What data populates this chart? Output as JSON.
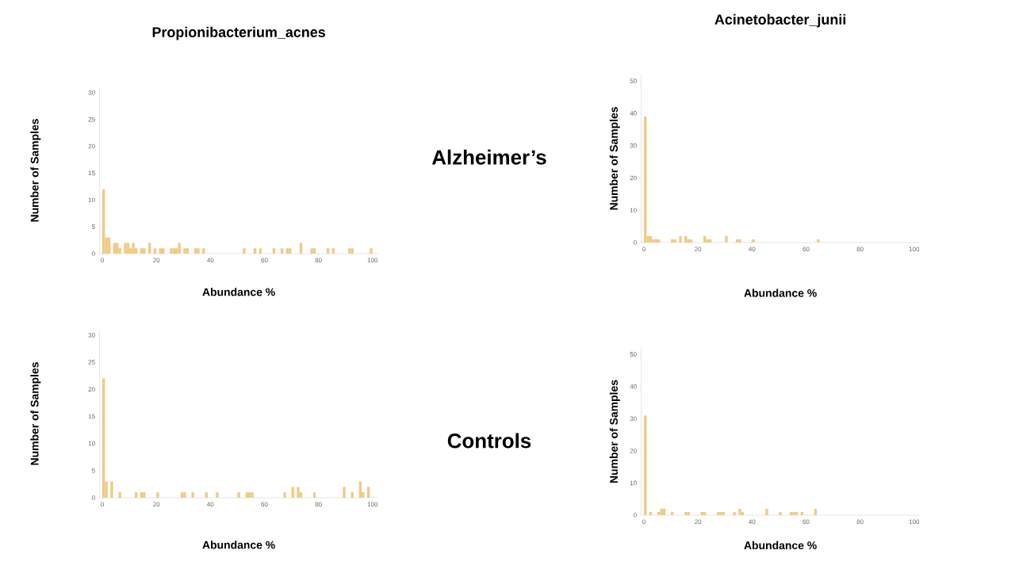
{
  "chart_data": [
    {
      "type": "histogram",
      "title": "Propionibacterium_acnes",
      "xlabel": "Abundance %",
      "ylabel": "Number of Samples",
      "annotations": [
        "Alzheimer’s"
      ],
      "color": "#f0cb84",
      "bins": [
        0,
        1,
        2,
        3,
        4,
        5,
        6,
        7,
        8,
        9,
        10,
        11,
        12,
        13,
        14,
        15,
        16,
        17,
        18,
        19,
        20,
        21,
        22,
        23,
        24,
        25,
        26,
        27,
        28,
        29,
        30,
        31,
        32,
        33,
        34,
        35,
        36,
        37,
        38,
        39,
        40,
        41,
        42,
        43,
        44,
        45,
        46,
        47,
        48,
        49,
        50,
        51,
        52,
        53,
        54,
        55,
        56,
        57,
        58,
        59,
        60,
        61,
        62,
        63,
        64,
        65,
        66,
        67,
        68,
        69,
        70,
        71,
        72,
        73,
        74,
        75,
        76,
        77,
        78,
        79,
        80,
        81,
        82,
        83,
        84,
        85,
        86,
        87,
        88,
        89,
        90,
        91,
        92,
        93,
        94,
        95,
        96,
        97,
        98,
        99,
        100
      ],
      "values": [
        12,
        3,
        3,
        0,
        2,
        2,
        1,
        0,
        2,
        2,
        1,
        2,
        1,
        0,
        1,
        1,
        0,
        2,
        0,
        1,
        0,
        1,
        1,
        0,
        0,
        1,
        1,
        1,
        2,
        0,
        1,
        1,
        0,
        0,
        1,
        1,
        0,
        1,
        0,
        0,
        0,
        0,
        0,
        0,
        0,
        0,
        0,
        0,
        0,
        0,
        0,
        0,
        1,
        0,
        0,
        0,
        1,
        0,
        1,
        0,
        0,
        0,
        0,
        1,
        0,
        0,
        1,
        0,
        1,
        1,
        0,
        0,
        0,
        2,
        0,
        0,
        0,
        1,
        1,
        0,
        0,
        0,
        0,
        1,
        0,
        1,
        0,
        0,
        0,
        0,
        0,
        1,
        1,
        0,
        0,
        0,
        0,
        0,
        0,
        1
      ],
      "xlim": [
        -1,
        102
      ],
      "ylim": [
        0,
        31
      ],
      "xticks": [
        0,
        20,
        40,
        60,
        80,
        100
      ],
      "yticks": [
        0,
        5,
        10,
        15,
        20,
        25,
        30
      ]
    },
    {
      "type": "histogram",
      "title": "Acinetobacter_junii",
      "xlabel": "Abundance %",
      "ylabel": "Number of Samples",
      "color": "#f0cb84",
      "bins": [
        0,
        1,
        2,
        3,
        4,
        5,
        6,
        7,
        8,
        9,
        10,
        11,
        12,
        13,
        14,
        15,
        16,
        17,
        18,
        19,
        20,
        21,
        22,
        23,
        24,
        25,
        26,
        27,
        28,
        29,
        30,
        31,
        32,
        33,
        34,
        35,
        36,
        37,
        38,
        39,
        40,
        41,
        42,
        43,
        44,
        45,
        46,
        47,
        48,
        49,
        50,
        51,
        52,
        53,
        54,
        55,
        56,
        57,
        58,
        59,
        60,
        61,
        62,
        63,
        64,
        65,
        66,
        67,
        68,
        69,
        70,
        71,
        72,
        73,
        74,
        75,
        76,
        77,
        78,
        79,
        80,
        81,
        82,
        83,
        84,
        85,
        86,
        87,
        88,
        89,
        90,
        91,
        92,
        93,
        94,
        95,
        96,
        97,
        98,
        99,
        100
      ],
      "values": [
        39,
        2,
        2,
        1,
        1,
        1,
        0,
        0,
        0,
        0,
        1,
        1,
        0,
        2,
        0,
        2,
        1,
        1,
        0,
        0,
        0,
        0,
        2,
        1,
        1,
        0,
        0,
        0,
        0,
        0,
        2,
        0,
        0,
        0,
        1,
        1,
        0,
        0,
        0,
        0,
        1,
        0,
        0,
        0,
        0,
        0,
        0,
        0,
        0,
        0,
        0,
        0,
        0,
        0,
        0,
        0,
        0,
        0,
        0,
        0,
        0,
        0,
        0,
        0,
        1,
        0,
        0,
        0,
        0,
        0,
        0,
        0,
        0,
        0,
        0,
        0,
        0,
        0,
        0,
        0,
        0,
        0,
        0,
        0,
        0,
        0,
        0,
        0,
        0,
        0,
        0,
        0,
        0,
        0,
        0,
        0,
        0,
        0,
        0,
        0
      ],
      "xlim": [
        -1,
        102
      ],
      "ylim": [
        0,
        52
      ],
      "xticks": [
        0,
        20,
        40,
        60,
        80,
        100
      ],
      "yticks": [
        0,
        10,
        20,
        30,
        40,
        50
      ]
    },
    {
      "type": "histogram",
      "xlabel": "Abundance %",
      "ylabel": "Number of Samples",
      "annotations": [
        "Controls"
      ],
      "color": "#f0cb84",
      "bins": [
        0,
        1,
        2,
        3,
        4,
        5,
        6,
        7,
        8,
        9,
        10,
        11,
        12,
        13,
        14,
        15,
        16,
        17,
        18,
        19,
        20,
        21,
        22,
        23,
        24,
        25,
        26,
        27,
        28,
        29,
        30,
        31,
        32,
        33,
        34,
        35,
        36,
        37,
        38,
        39,
        40,
        41,
        42,
        43,
        44,
        45,
        46,
        47,
        48,
        49,
        50,
        51,
        52,
        53,
        54,
        55,
        56,
        57,
        58,
        59,
        60,
        61,
        62,
        63,
        64,
        65,
        66,
        67,
        68,
        69,
        70,
        71,
        72,
        73,
        74,
        75,
        76,
        77,
        78,
        79,
        80,
        81,
        82,
        83,
        84,
        85,
        86,
        87,
        88,
        89,
        90,
        91,
        92,
        93,
        94,
        95,
        96,
        97,
        98,
        99,
        100
      ],
      "values": [
        22,
        3,
        0,
        3,
        0,
        0,
        1,
        0,
        0,
        0,
        0,
        0,
        1,
        0,
        1,
        1,
        0,
        0,
        0,
        0,
        1,
        0,
        0,
        0,
        0,
        0,
        0,
        0,
        0,
        1,
        1,
        0,
        0,
        1,
        0,
        0,
        0,
        0,
        1,
        0,
        0,
        0,
        1,
        0,
        0,
        0,
        0,
        0,
        0,
        0,
        1,
        0,
        0,
        1,
        1,
        1,
        0,
        0,
        0,
        0,
        0,
        0,
        0,
        0,
        0,
        0,
        0,
        1,
        0,
        0,
        2,
        0,
        2,
        1,
        0,
        0,
        0,
        0,
        1,
        0,
        0,
        0,
        0,
        0,
        0,
        0,
        0,
        0,
        0,
        2,
        0,
        0,
        1,
        0,
        0,
        3,
        1,
        0,
        2,
        0
      ],
      "xlim": [
        -1,
        102
      ],
      "ylim": [
        0,
        31
      ],
      "xticks": [
        0,
        20,
        40,
        60,
        80,
        100
      ],
      "yticks": [
        0,
        5,
        10,
        15,
        20,
        25,
        30
      ]
    },
    {
      "type": "histogram",
      "xlabel": "Abundance %",
      "ylabel": "Number of Samples",
      "color": "#f0cb84",
      "bins": [
        0,
        1,
        2,
        3,
        4,
        5,
        6,
        7,
        8,
        9,
        10,
        11,
        12,
        13,
        14,
        15,
        16,
        17,
        18,
        19,
        20,
        21,
        22,
        23,
        24,
        25,
        26,
        27,
        28,
        29,
        30,
        31,
        32,
        33,
        34,
        35,
        36,
        37,
        38,
        39,
        40,
        41,
        42,
        43,
        44,
        45,
        46,
        47,
        48,
        49,
        50,
        51,
        52,
        53,
        54,
        55,
        56,
        57,
        58,
        59,
        60,
        61,
        62,
        63,
        64,
        65,
        66,
        67,
        68,
        69,
        70,
        71,
        72,
        73,
        74,
        75,
        76,
        77,
        78,
        79,
        80,
        81,
        82,
        83,
        84,
        85,
        86,
        87,
        88,
        89,
        90,
        91,
        92,
        93,
        94,
        95,
        96,
        97,
        98,
        99,
        100
      ],
      "values": [
        31,
        0,
        1,
        0,
        0,
        1,
        2,
        2,
        0,
        0,
        1,
        0,
        0,
        0,
        0,
        1,
        1,
        0,
        0,
        0,
        0,
        1,
        1,
        0,
        0,
        0,
        0,
        1,
        1,
        1,
        0,
        0,
        0,
        1,
        0,
        2,
        1,
        0,
        0,
        0,
        0,
        0,
        0,
        0,
        0,
        2,
        0,
        0,
        0,
        0,
        1,
        0,
        0,
        0,
        1,
        1,
        1,
        0,
        1,
        0,
        0,
        0,
        0,
        2,
        0,
        0,
        0,
        0,
        0,
        0,
        0,
        0,
        0,
        0,
        0,
        0,
        0,
        0,
        0,
        0,
        0,
        0,
        0,
        0,
        0,
        0,
        0,
        0,
        0,
        0,
        0,
        0,
        0,
        0,
        0,
        0,
        0,
        0,
        0,
        0
      ],
      "xlim": [
        -1,
        102
      ],
      "ylim": [
        0,
        52
      ],
      "xticks": [
        0,
        20,
        40,
        60,
        80,
        100
      ],
      "yticks": [
        0,
        10,
        20,
        30,
        40,
        50
      ]
    }
  ]
}
